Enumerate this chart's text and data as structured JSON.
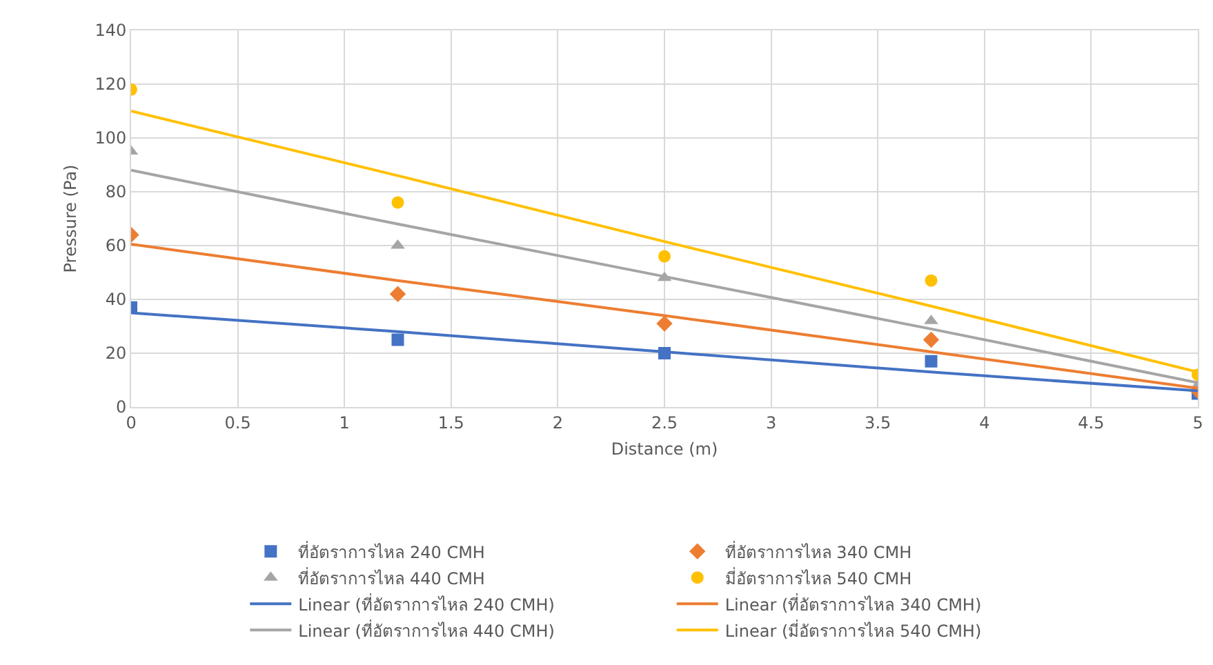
{
  "chart_data": {
    "type": "scatter",
    "xlabel": "Distance (m)",
    "ylabel": "Pressure (Pa)",
    "xlim": [
      0,
      5
    ],
    "xticks": [
      0,
      0.5,
      1,
      1.5,
      2,
      2.5,
      3,
      3.5,
      4,
      4.5,
      5
    ],
    "ylim": [
      0,
      140
    ],
    "yticks": [
      0,
      20,
      40,
      60,
      80,
      100,
      120,
      140
    ],
    "x": [
      0,
      1.25,
      2.5,
      3.75,
      5
    ],
    "grid": true,
    "legend": "bottom",
    "series": [
      {
        "name": "ที่อัตราการไหล 240 CMH",
        "marker": "square",
        "color": "#4472c4",
        "values": [
          37,
          25,
          20,
          17,
          5
        ]
      },
      {
        "name": "ที่อัตราการไหล 340 CMH",
        "marker": "diamond",
        "color": "#ed7d31",
        "values": [
          64,
          42,
          31,
          25,
          6
        ]
      },
      {
        "name": "ที่อัตราการไหล 440 CMH",
        "marker": "triangle",
        "color": "#a5a5a5",
        "values": [
          95,
          60,
          48,
          32,
          8
        ]
      },
      {
        "name": "มี่อัตราการไหล 540 CMH",
        "marker": "circle",
        "color": "#ffc000",
        "values": [
          118,
          76,
          56,
          47,
          12
        ]
      },
      {
        "name": "Linear (ที่อัตราการไหล 240 CMH)",
        "type": "line",
        "marker": "none",
        "color": "#4472c4",
        "values": [
          35,
          28,
          20.5,
          13,
          6
        ]
      },
      {
        "name": "Linear (ที่อัตราการไหล 340 CMH)",
        "type": "line",
        "marker": "none",
        "color": "#ed7d31",
        "values": [
          60.5,
          47,
          34,
          20.5,
          7
        ]
      },
      {
        "name": "Linear (ที่อัตราการไหล 440 CMH)",
        "type": "line",
        "marker": "none",
        "color": "#a5a5a5",
        "values": [
          88,
          68,
          48.5,
          29,
          9
        ]
      },
      {
        "name": "Linear (มี่อัตราการไหล 540 CMH)",
        "type": "line",
        "marker": "none",
        "color": "#ffc000",
        "values": [
          110,
          86,
          61.5,
          37.5,
          13
        ]
      }
    ]
  }
}
